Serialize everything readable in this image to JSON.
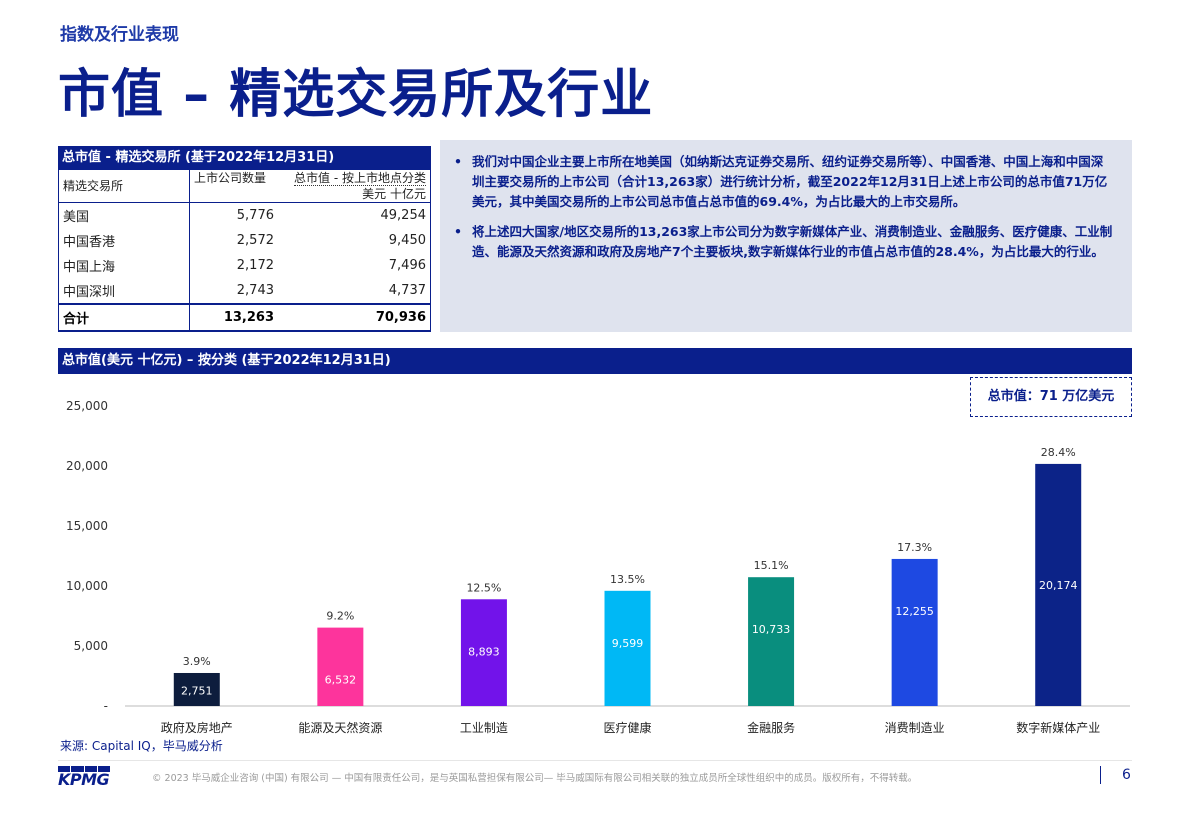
{
  "header": {
    "kicker": "指数及行业表现",
    "title": "市值 – 精选交易所及行业"
  },
  "exchange_table": {
    "title": "总市值 - 精选交易所 (基于2022年12月31日)",
    "col1_header": "精选交易所",
    "col2_header": "上市公司数量",
    "col3_header": "总市值 - 按上市地点分类",
    "col3_subheader": "美元 十亿元",
    "rows": [
      {
        "exchange": "美国",
        "count": "5,776",
        "cap": "49,254"
      },
      {
        "exchange": "中国香港",
        "count": "2,572",
        "cap": "9,450"
      },
      {
        "exchange": "中国上海",
        "count": "2,172",
        "cap": "7,496"
      },
      {
        "exchange": "中国深圳",
        "count": "2,743",
        "cap": "4,737"
      }
    ],
    "total": {
      "exchange": "合计",
      "count": "13,263",
      "cap": "70,936"
    }
  },
  "notes": {
    "bullet": "•",
    "items": [
      "我们对中国企业主要上市所在地美国（如纳斯达克证券交易所、纽约证券交易所等）、中国香港、中国上海和中国深圳主要交易所的上市公司（合计13,263家）进行统计分析，截至2022年12月31日上述上市公司的总市值71万亿美元，其中美国交易所的上市公司总市值占总市值的69.4%，为占比最大的上市交易所。",
      "将上述四大国家/地区交易所的13,263家上市公司分为数字新媒体产业、消费制造业、金融服务、医疗健康、工业制造、能源及天然资源和政府及房地产7个主要板块,数字新媒体行业的市值占总市值的28.4%，为占比最大的行业。"
    ]
  },
  "chart_header": "总市值(美元 十亿元) – 按分类 (基于2022年12月31日)",
  "callout": "总市值：71 万亿美元",
  "chart_data": {
    "type": "bar",
    "title": "总市值(美元 十亿元) – 按分类 (基于2022年12月31日)",
    "categories": [
      "政府及房地产",
      "能源及天然资源",
      "工业制造",
      "医疗健康",
      "金融服务",
      "消费制造业",
      "数字新媒体产业"
    ],
    "values": [
      2751,
      6532,
      8893,
      9599,
      10733,
      12255,
      20174
    ],
    "value_labels": [
      "2,751",
      "6,532",
      "8,893",
      "9,599",
      "10,733",
      "12,255",
      "20,174"
    ],
    "shares": [
      "3.9%",
      "9.2%",
      "12.5%",
      "13.5%",
      "15.1%",
      "17.3%",
      "28.4%"
    ],
    "colors": [
      "#0d1d3d",
      "#fd349c",
      "#7213ea",
      "#00b8f5",
      "#098e7e",
      "#1e49e2",
      "#0c2388"
    ],
    "yticks": [
      0,
      5000,
      10000,
      15000,
      20000,
      25000
    ],
    "ytick_labels": [
      "-",
      "5,000",
      "10,000",
      "15,000",
      "20,000",
      "25,000"
    ],
    "ylim": [
      0,
      25000
    ],
    "grid": false,
    "legend": "none"
  },
  "footer": {
    "source": "来源: Capital IQ，毕马威分析",
    "logo": "KPMG",
    "copyright": "© 2023 毕马威企业咨询 (中国) 有限公司 — 中国有限责任公司，是与英国私营担保有限公司— 毕马威国际有限公司相关联的独立成员所全球性组织中的成员。版权所有，不得转载。",
    "page": "6"
  }
}
